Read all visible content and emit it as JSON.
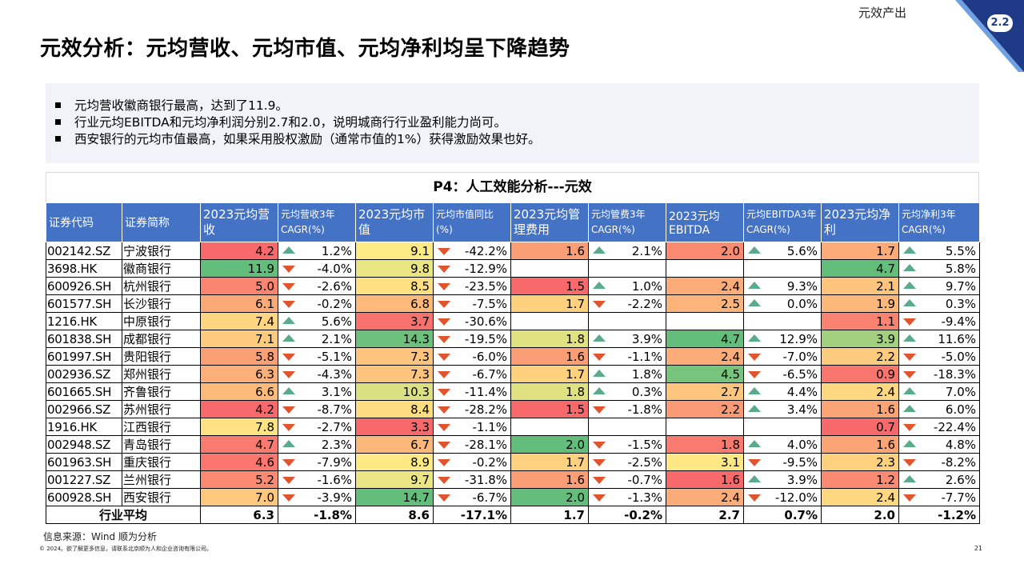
{
  "header": {
    "section_label": "元效产出",
    "section_number": "2.2",
    "title": "元效分析：元均营收、元均市值、元均净利均呈下降趋势"
  },
  "summary": {
    "bullets": [
      "元均营收徽商银行最高，达到了11.9。",
      "行业元均EBITDA和元均净利润分别2.7和2.0，说明城商行行业盈利能力尚可。",
      "西安银行的元均市值最高，如果采用股权激励（通常市值的1%）获得激励效果也好。"
    ]
  },
  "table": {
    "caption": "P4：人工效能分析---元效",
    "headers": [
      "证券代码",
      "证券简称",
      "2023元均营收",
      "元均营收3年CAGR(%)",
      "2023元均市值",
      "元均市值同比(%)",
      "2023元均管理费用",
      "元均管费3年CAGR(%)",
      "2023元均EBITDA",
      "元均EBITDA3年CAGR(%)",
      "2023元均净利",
      "元均净利3年CAGR(%)"
    ],
    "rows": [
      [
        "002142.SZ",
        "宁波银行",
        "4.2",
        "1.2%",
        "9.1",
        "-42.2%",
        "1.6",
        "2.1%",
        "2.0",
        "5.6%",
        "1.7",
        "5.5%"
      ],
      [
        "3698.HK",
        "徽商银行",
        "11.9",
        "-4.0%",
        "9.8",
        "-12.9%",
        "",
        "",
        "",
        "",
        "4.7",
        "5.8%"
      ],
      [
        "600926.SH",
        "杭州银行",
        "5.0",
        "-2.6%",
        "8.5",
        "-23.5%",
        "1.5",
        "1.0%",
        "2.4",
        "9.3%",
        "2.1",
        "9.7%"
      ],
      [
        "601577.SH",
        "长沙银行",
        "6.1",
        "-0.2%",
        "6.8",
        "-7.5%",
        "1.7",
        "-2.2%",
        "2.5",
        "0.0%",
        "1.9",
        "0.3%"
      ],
      [
        "1216.HK",
        "中原银行",
        "7.4",
        "5.6%",
        "3.7",
        "-30.6%",
        "",
        "",
        "",
        "",
        "1.1",
        "-9.4%"
      ],
      [
        "601838.SH",
        "成都银行",
        "7.1",
        "2.1%",
        "14.3",
        "-19.5%",
        "1.8",
        "3.9%",
        "4.7",
        "12.9%",
        "3.9",
        "11.6%"
      ],
      [
        "601997.SH",
        "贵阳银行",
        "5.8",
        "-5.1%",
        "7.3",
        "-6.0%",
        "1.6",
        "-1.1%",
        "2.4",
        "-7.0%",
        "2.2",
        "-5.0%"
      ],
      [
        "002936.SZ",
        "郑州银行",
        "6.3",
        "-4.3%",
        "7.3",
        "-6.7%",
        "1.7",
        "1.8%",
        "4.5",
        "-6.5%",
        "0.9",
        "-18.3%"
      ],
      [
        "601665.SH",
        "齐鲁银行",
        "6.6",
        "3.1%",
        "10.3",
        "-11.4%",
        "1.8",
        "0.3%",
        "2.7",
        "4.4%",
        "2.4",
        "7.0%"
      ],
      [
        "002966.SZ",
        "苏州银行",
        "4.2",
        "-8.7%",
        "8.4",
        "-28.2%",
        "1.5",
        "-1.8%",
        "2.2",
        "3.4%",
        "1.6",
        "6.0%"
      ],
      [
        "1916.HK",
        "江西银行",
        "7.8",
        "-2.7%",
        "3.3",
        "-1.1%",
        "",
        "",
        "",
        "",
        "0.7",
        "-22.4%"
      ],
      [
        "002948.SZ",
        "青岛银行",
        "4.7",
        "2.3%",
        "6.7",
        "-28.1%",
        "2.0",
        "-1.5%",
        "1.8",
        "4.0%",
        "1.6",
        "4.8%"
      ],
      [
        "601963.SH",
        "重庆银行",
        "4.6",
        "-7.9%",
        "8.9",
        "-0.2%",
        "1.7",
        "-2.5%",
        "3.1",
        "-9.5%",
        "2.3",
        "-8.2%"
      ],
      [
        "001227.SZ",
        "兰州银行",
        "5.2",
        "-1.6%",
        "9.7",
        "-31.8%",
        "1.6",
        "-0.7%",
        "1.6",
        "3.9%",
        "1.2",
        "2.6%"
      ],
      [
        "600928.SH",
        "西安银行",
        "7.0",
        "-3.9%",
        "14.7",
        "-6.7%",
        "2.0",
        "-1.3%",
        "2.4",
        "-12.0%",
        "2.4",
        "-7.7%"
      ]
    ],
    "average": {
      "label": "行业平均",
      "values": [
        "6.3",
        "-1.8%",
        "8.6",
        "-17.1%",
        "1.7",
        "-0.2%",
        "2.7",
        "0.7%",
        "2.0",
        "-1.2%"
      ]
    }
  },
  "footer": {
    "source": "信息来源：Wind 顺为分析",
    "copyright": "© 2024。欲了解更多信息，请联系北京顺为人和企业咨询有限公司。",
    "page_number": "21"
  },
  "colors": {
    "header_blue": "#4472c4",
    "corner_navy": "#1f3b87",
    "heat_low": "#f8696b",
    "heat_mid": "#ffeb84",
    "heat_high": "#63be7b",
    "arrow_up": "#5aab8a",
    "arrow_down": "#e0552e"
  }
}
